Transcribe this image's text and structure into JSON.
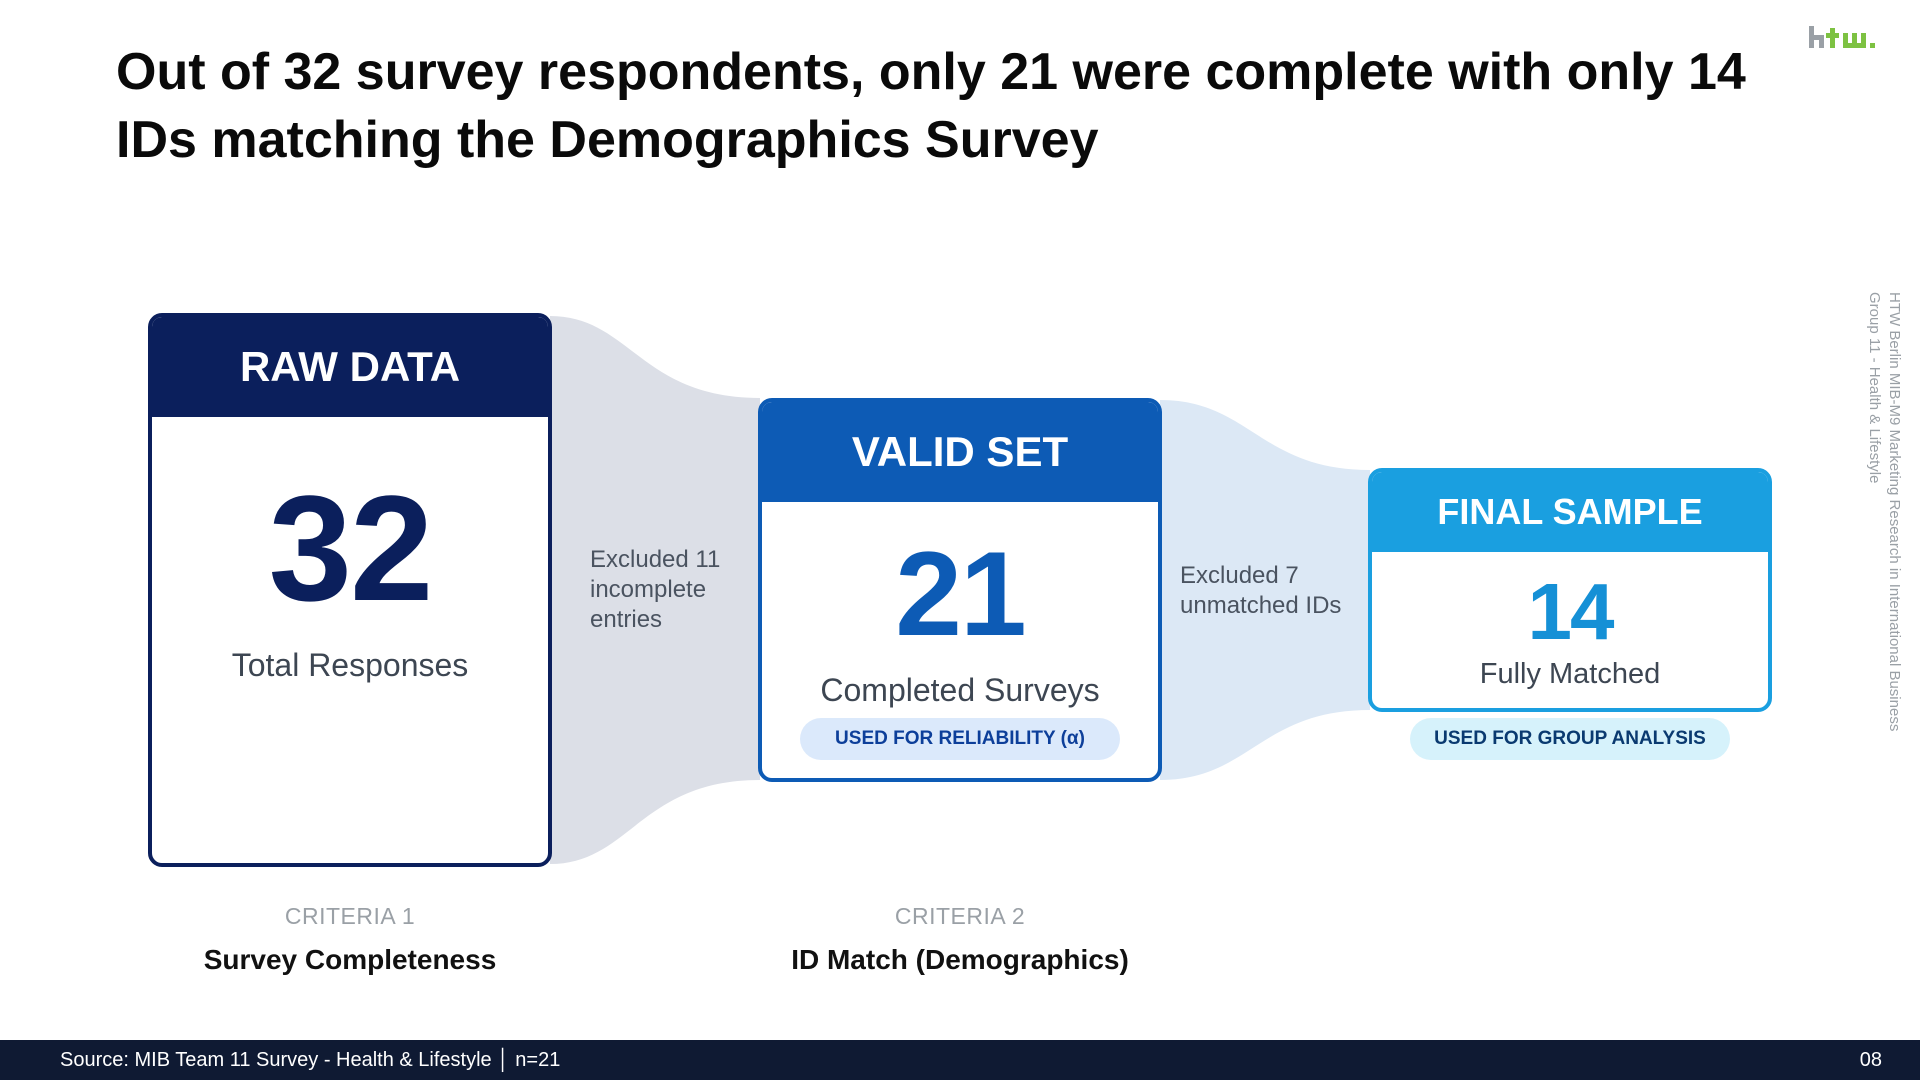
{
  "title": "Out of 32 survey respondents, only 21 were complete with only 14 IDs matching the Demographics Survey",
  "logo": {
    "text": "htw."
  },
  "side_note": {
    "line1": "HTW Berlin MIB-M9 Marketing Research in International Business",
    "line2": "Group 11 - Health & Lifestyle"
  },
  "stages": [
    {
      "header": "RAW DATA",
      "value": "32",
      "label": "Total Responses"
    },
    {
      "header": "VALID SET",
      "value": "21",
      "label": "Completed Surveys",
      "tag": "USED FOR RELIABILITY (α)"
    },
    {
      "header": "FINAL SAMPLE",
      "value": "14",
      "label": "Fully Matched",
      "tag": "USED FOR GROUP ANALYSIS"
    }
  ],
  "exclusions": [
    {
      "text": "Excluded 11 incomplete entries"
    },
    {
      "text": "Excluded 7 unmatched IDs"
    }
  ],
  "criteria": [
    {
      "label": "CRITERIA 1",
      "name": "Survey Completeness"
    },
    {
      "label": "CRITERIA 2",
      "name": "ID Match (Demographics)"
    }
  ],
  "footer": {
    "source": "Source: MIB Team 11 Survey - Health & Lifestyle │ n=21",
    "page": "08"
  },
  "colors": {
    "raw": "#0b1f5c",
    "valid": "#0d5bb5",
    "final": "#1a9fe0",
    "flow_1": "#dcdfe7",
    "flow_2": "#dce8f5",
    "footer_bg": "#0f1a33"
  }
}
